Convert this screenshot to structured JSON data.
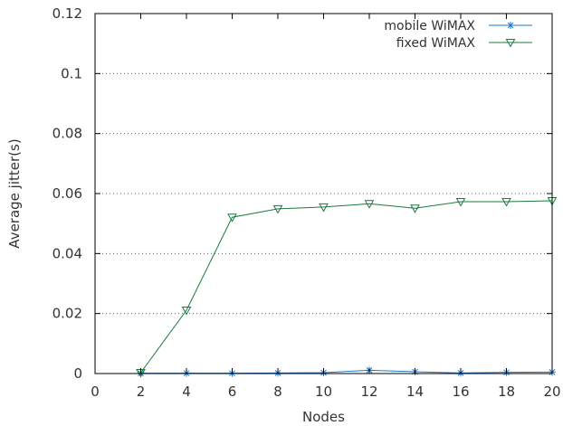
{
  "chart_data": {
    "type": "line",
    "title": "",
    "xlabel": "Nodes",
    "ylabel": "Average jitter(s)",
    "xlim": [
      0,
      20
    ],
    "ylim": [
      0,
      0.12
    ],
    "x_ticks": [
      0,
      2,
      4,
      6,
      8,
      10,
      12,
      14,
      16,
      18,
      20
    ],
    "x_tick_labels": [
      "0",
      "2",
      "4",
      "6",
      "8",
      "10",
      "12",
      "14",
      "16",
      "18",
      "20"
    ],
    "y_ticks": [
      0,
      0.02,
      0.04,
      0.06,
      0.08,
      0.1,
      0.12
    ],
    "y_tick_labels": [
      "0",
      "0.02",
      "0.04",
      "0.06",
      "0.08",
      "0.1",
      "0.12"
    ],
    "grid": "horizontal dotted",
    "legend_position": "top-right",
    "x": [
      2,
      4,
      6,
      8,
      10,
      12,
      14,
      16,
      18,
      20
    ],
    "series": [
      {
        "name": "mobile WiMAX",
        "color": "#1a78d6",
        "marker": "asterisk",
        "values": [
          0.0001,
          0.0001,
          0.0001,
          0.0002,
          0.0003,
          0.0011,
          0.0006,
          0.0002,
          0.0004,
          0.0005
        ]
      },
      {
        "name": "fixed WiMAX",
        "color": "#1b7a3e",
        "marker": "triangle-down",
        "values": [
          0.0003,
          0.0211,
          0.0521,
          0.0549,
          0.0555,
          0.0566,
          0.0551,
          0.0573,
          0.0573,
          0.0576
        ]
      }
    ]
  }
}
